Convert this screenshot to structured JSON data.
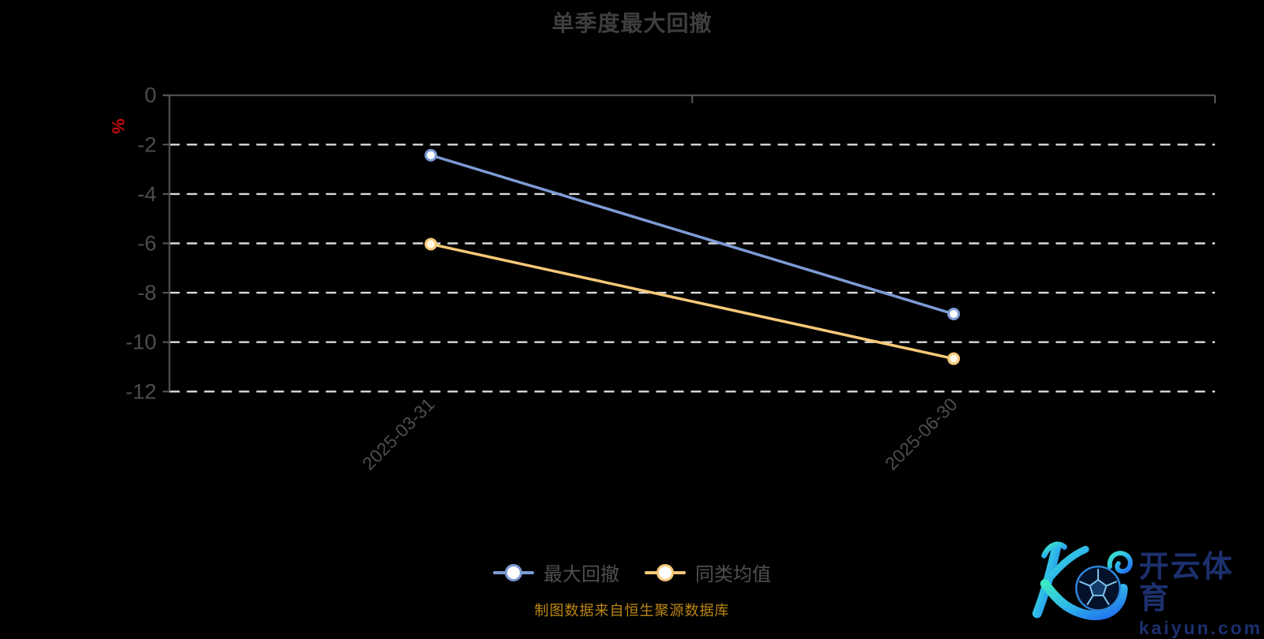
{
  "page": {
    "background": "#000000"
  },
  "chart": {
    "title": "单季度最大回撤",
    "title_color": "#3E3E3E"
  },
  "y_axis": {
    "unit": "%",
    "unit_color": "#C40A0A",
    "ticks": [
      "0",
      "-2",
      "-4",
      "-6",
      "-8",
      "-10",
      "-12"
    ],
    "label_color": "#4D4D4D",
    "axis_color": "#585858",
    "gridline_color": "#DADADA"
  },
  "x_axis": {
    "categories": [
      "2025-03-31",
      "2025-06-30"
    ],
    "label_color": "#4D4D4D"
  },
  "chart_data": {
    "type": "line",
    "title": "单季度最大回撤",
    "categories": [
      "2025-03-31",
      "2025-06-30"
    ],
    "series": [
      {
        "name": "最大回撤",
        "values": [
          -2.43,
          -8.86
        ],
        "color": "#7D9BD4",
        "marker_fill": "#FFFFFF"
      },
      {
        "name": "同类均值",
        "values": [
          -6.03,
          -10.67
        ],
        "color": "#F5C878",
        "marker_fill": "#FFF7E6"
      }
    ],
    "xlabel": "",
    "ylabel": "%",
    "ylim": [
      -12,
      0
    ],
    "yticks": [
      0,
      -2,
      -4,
      -6,
      -8,
      -10,
      -12
    ],
    "grid": "horizontal-dashed",
    "legend_position": "bottom"
  },
  "legend": {
    "items": [
      {
        "label": "最大回撤",
        "color": "#7D9BD4"
      },
      {
        "label": "同类均值",
        "color": "#F5C878"
      }
    ]
  },
  "caption": {
    "text": "制图数据来自恒生聚源数据库",
    "color": "#BD8712"
  },
  "logo": {
    "brand": "开云体育",
    "domain": "kaiyun.com",
    "text_color": "#1C306E",
    "gradient_start": "#3BE8C6",
    "gradient_end": "#1F6AEF"
  }
}
